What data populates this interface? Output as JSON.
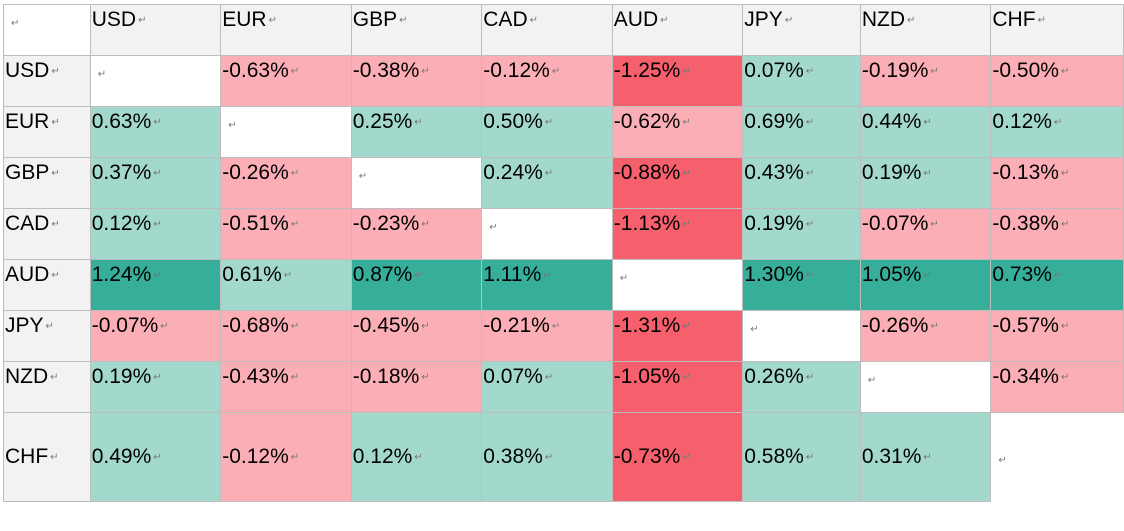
{
  "corner_mark": "↵",
  "columns": [
    "USD",
    "EUR",
    "GBP",
    "CAD",
    "AUD",
    "JPY",
    "NZD",
    "CHF"
  ],
  "rows": [
    {
      "label": "USD",
      "cells": [
        "",
        "-0.63%",
        "-0.38%",
        "-0.12%",
        "-1.25%",
        "0.07%",
        "-0.19%",
        "-0.50%"
      ]
    },
    {
      "label": "EUR",
      "cells": [
        "0.63%",
        "",
        "0.25%",
        "0.50%",
        "-0.62%",
        "0.69%",
        "0.44%",
        "0.12%"
      ]
    },
    {
      "label": "GBP",
      "cells": [
        "0.37%",
        "-0.26%",
        "",
        "0.24%",
        "-0.88%",
        "0.43%",
        "0.19%",
        "-0.13%"
      ]
    },
    {
      "label": "CAD",
      "cells": [
        "0.12%",
        "-0.51%",
        "-0.23%",
        "",
        "-1.13%",
        "0.19%",
        "-0.07%",
        "-0.38%"
      ]
    },
    {
      "label": "AUD",
      "cells": [
        "1.24%",
        "0.61%",
        "0.87%",
        "1.11%",
        "",
        "1.30%",
        "1.05%",
        "0.73%"
      ]
    },
    {
      "label": "JPY",
      "cells": [
        "-0.07%",
        "-0.68%",
        "-0.45%",
        "-0.21%",
        "-1.31%",
        "",
        "-0.26%",
        "-0.57%"
      ]
    },
    {
      "label": "NZD",
      "cells": [
        "0.19%",
        "-0.43%",
        "-0.18%",
        "0.07%",
        "-1.05%",
        "0.26%",
        "",
        "-0.34%"
      ]
    },
    {
      "label": "CHF",
      "cells": [
        "0.49%",
        "-0.12%",
        "0.12%",
        "0.38%",
        "-0.73%",
        "0.58%",
        "0.31%",
        ""
      ]
    }
  ],
  "colors": {
    "header_bg": "#f2f2f2",
    "positive_light": "#a3d9cc",
    "positive_strong": "#36ae99",
    "negative_light": "#fcaeb6",
    "negative_strong": "#f6606d"
  }
}
